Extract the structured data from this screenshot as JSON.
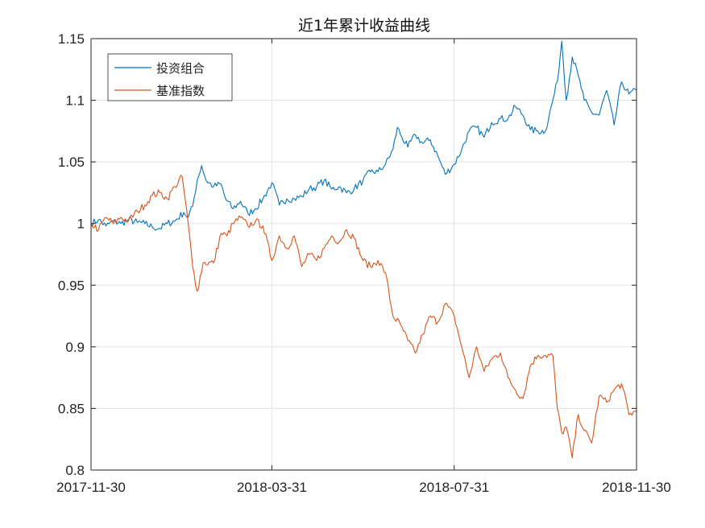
{
  "chart_data": {
    "type": "line",
    "title": "近1年累计收益曲线",
    "xlabel": "",
    "ylabel": "",
    "x_ticks": [
      "2017-11-30",
      "2018-03-31",
      "2018-07-31",
      "2018-11-30"
    ],
    "y_ticks": [
      "0.8",
      "0.85",
      "0.9",
      "0.95",
      "1",
      "1.05",
      "1.1",
      "1.15"
    ],
    "xlim": [
      "2017-11-30",
      "2018-11-30"
    ],
    "ylim": [
      0.8,
      1.15
    ],
    "grid": true,
    "legend_position": "top-left",
    "series": [
      {
        "name": "投资组合",
        "color": "#0072BD",
        "points": [
          [
            "2017-11-30",
            1.0
          ],
          [
            "2017-12-05",
            1.003
          ],
          [
            "2017-12-10",
            0.998
          ],
          [
            "2017-12-15",
            1.002
          ],
          [
            "2017-12-20",
            1.0
          ],
          [
            "2017-12-25",
            1.003
          ],
          [
            "2017-12-31",
            1.001
          ],
          [
            "2018-01-05",
            1.0
          ],
          [
            "2018-01-10",
            0.997
          ],
          [
            "2018-01-15",
            0.996
          ],
          [
            "2018-01-20",
            1.0
          ],
          [
            "2018-01-25",
            1.002
          ],
          [
            "2018-01-31",
            1.009
          ],
          [
            "2018-02-03",
            1.005
          ],
          [
            "2018-02-06",
            1.014
          ],
          [
            "2018-02-09",
            1.035
          ],
          [
            "2018-02-12",
            1.047
          ],
          [
            "2018-02-15",
            1.035
          ],
          [
            "2018-02-20",
            1.03
          ],
          [
            "2018-02-25",
            1.032
          ],
          [
            "2018-02-28",
            1.02
          ],
          [
            "2018-03-05",
            1.012
          ],
          [
            "2018-03-10",
            1.018
          ],
          [
            "2018-03-15",
            1.008
          ],
          [
            "2018-03-20",
            1.012
          ],
          [
            "2018-03-25",
            1.02
          ],
          [
            "2018-03-31",
            1.033
          ],
          [
            "2018-04-05",
            1.015
          ],
          [
            "2018-04-10",
            1.02
          ],
          [
            "2018-04-15",
            1.02
          ],
          [
            "2018-04-20",
            1.022
          ],
          [
            "2018-04-25",
            1.028
          ],
          [
            "2018-04-30",
            1.03
          ],
          [
            "2018-05-05",
            1.035
          ],
          [
            "2018-05-10",
            1.028
          ],
          [
            "2018-05-15",
            1.03
          ],
          [
            "2018-05-20",
            1.025
          ],
          [
            "2018-05-25",
            1.028
          ],
          [
            "2018-05-31",
            1.035
          ],
          [
            "2018-06-05",
            1.042
          ],
          [
            "2018-06-10",
            1.042
          ],
          [
            "2018-06-15",
            1.048
          ],
          [
            "2018-06-20",
            1.06
          ],
          [
            "2018-06-23",
            1.078
          ],
          [
            "2018-06-26",
            1.07
          ],
          [
            "2018-06-30",
            1.062
          ],
          [
            "2018-07-05",
            1.072
          ],
          [
            "2018-07-10",
            1.065
          ],
          [
            "2018-07-15",
            1.068
          ],
          [
            "2018-07-20",
            1.055
          ],
          [
            "2018-07-25",
            1.04
          ],
          [
            "2018-07-31",
            1.048
          ],
          [
            "2018-08-05",
            1.06
          ],
          [
            "2018-08-10",
            1.075
          ],
          [
            "2018-08-15",
            1.078
          ],
          [
            "2018-08-20",
            1.07
          ],
          [
            "2018-08-25",
            1.082
          ],
          [
            "2018-08-31",
            1.085
          ],
          [
            "2018-09-05",
            1.085
          ],
          [
            "2018-09-10",
            1.095
          ],
          [
            "2018-09-15",
            1.088
          ],
          [
            "2018-09-20",
            1.076
          ],
          [
            "2018-09-25",
            1.075
          ],
          [
            "2018-09-30",
            1.075
          ],
          [
            "2018-10-05",
            1.1
          ],
          [
            "2018-10-08",
            1.115
          ],
          [
            "2018-10-11",
            1.148
          ],
          [
            "2018-10-14",
            1.1
          ],
          [
            "2018-10-18",
            1.135
          ],
          [
            "2018-10-22",
            1.12
          ],
          [
            "2018-10-26",
            1.1
          ],
          [
            "2018-10-31",
            1.09
          ],
          [
            "2018-11-05",
            1.088
          ],
          [
            "2018-11-10",
            1.108
          ],
          [
            "2018-11-15",
            1.08
          ],
          [
            "2018-11-20",
            1.115
          ],
          [
            "2018-11-25",
            1.105
          ],
          [
            "2018-11-30",
            1.108
          ]
        ]
      },
      {
        "name": "基准指数",
        "color": "#D95319",
        "points": [
          [
            "2017-11-30",
            1.0
          ],
          [
            "2017-12-05",
            0.995
          ],
          [
            "2017-12-10",
            1.005
          ],
          [
            "2017-12-15",
            1.0
          ],
          [
            "2017-12-20",
            1.005
          ],
          [
            "2017-12-25",
            1.002
          ],
          [
            "2017-12-31",
            1.01
          ],
          [
            "2018-01-05",
            1.015
          ],
          [
            "2018-01-10",
            1.023
          ],
          [
            "2018-01-15",
            1.025
          ],
          [
            "2018-01-20",
            1.02
          ],
          [
            "2018-01-25",
            1.03
          ],
          [
            "2018-01-30",
            1.038
          ],
          [
            "2018-02-03",
            1.0
          ],
          [
            "2018-02-06",
            0.965
          ],
          [
            "2018-02-09",
            0.945
          ],
          [
            "2018-02-13",
            0.968
          ],
          [
            "2018-02-20",
            0.968
          ],
          [
            "2018-02-25",
            0.992
          ],
          [
            "2018-03-01",
            0.99
          ],
          [
            "2018-03-05",
            1.0
          ],
          [
            "2018-03-10",
            1.005
          ],
          [
            "2018-03-15",
            0.998
          ],
          [
            "2018-03-20",
            1.002
          ],
          [
            "2018-03-25",
            0.998
          ],
          [
            "2018-03-31",
            0.97
          ],
          [
            "2018-04-05",
            0.99
          ],
          [
            "2018-04-10",
            0.98
          ],
          [
            "2018-04-15",
            0.99
          ],
          [
            "2018-04-20",
            0.965
          ],
          [
            "2018-04-25",
            0.975
          ],
          [
            "2018-04-30",
            0.97
          ],
          [
            "2018-05-05",
            0.98
          ],
          [
            "2018-05-10",
            0.99
          ],
          [
            "2018-05-15",
            0.985
          ],
          [
            "2018-05-20",
            0.995
          ],
          [
            "2018-05-25",
            0.988
          ],
          [
            "2018-05-31",
            0.97
          ],
          [
            "2018-06-05",
            0.965
          ],
          [
            "2018-06-10",
            0.97
          ],
          [
            "2018-06-15",
            0.96
          ],
          [
            "2018-06-20",
            0.925
          ],
          [
            "2018-06-25",
            0.918
          ],
          [
            "2018-06-30",
            0.905
          ],
          [
            "2018-07-05",
            0.895
          ],
          [
            "2018-07-10",
            0.91
          ],
          [
            "2018-07-15",
            0.925
          ],
          [
            "2018-07-20",
            0.92
          ],
          [
            "2018-07-25",
            0.935
          ],
          [
            "2018-07-31",
            0.925
          ],
          [
            "2018-08-05",
            0.9
          ],
          [
            "2018-08-10",
            0.875
          ],
          [
            "2018-08-15",
            0.9
          ],
          [
            "2018-08-20",
            0.88
          ],
          [
            "2018-08-25",
            0.89
          ],
          [
            "2018-08-31",
            0.895
          ],
          [
            "2018-09-05",
            0.875
          ],
          [
            "2018-09-10",
            0.865
          ],
          [
            "2018-09-15",
            0.858
          ],
          [
            "2018-09-20",
            0.885
          ],
          [
            "2018-09-25",
            0.893
          ],
          [
            "2018-09-30",
            0.893
          ],
          [
            "2018-10-05",
            0.893
          ],
          [
            "2018-10-08",
            0.85
          ],
          [
            "2018-10-11",
            0.83
          ],
          [
            "2018-10-14",
            0.835
          ],
          [
            "2018-10-18",
            0.81
          ],
          [
            "2018-10-22",
            0.845
          ],
          [
            "2018-10-26",
            0.832
          ],
          [
            "2018-10-31",
            0.822
          ],
          [
            "2018-11-05",
            0.86
          ],
          [
            "2018-11-10",
            0.855
          ],
          [
            "2018-11-15",
            0.865
          ],
          [
            "2018-11-20",
            0.87
          ],
          [
            "2018-11-25",
            0.845
          ],
          [
            "2018-11-30",
            0.848
          ]
        ]
      }
    ]
  }
}
